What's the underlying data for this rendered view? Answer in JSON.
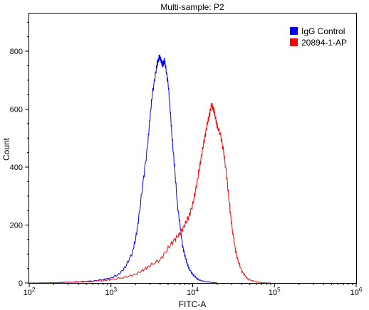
{
  "chart_data": {
    "type": "line",
    "title": "Multi-sample: P2",
    "xlabel": "FITC-A",
    "ylabel": "Count",
    "x_scale": "log",
    "xlim": [
      100,
      1000000
    ],
    "ylim": [
      0,
      930
    ],
    "x_ticks": [
      {
        "value": 100,
        "base": "10",
        "exp": "2"
      },
      {
        "value": 1000,
        "base": "10",
        "exp": "3"
      },
      {
        "value": 10000,
        "base": "10",
        "exp": "4"
      },
      {
        "value": 100000,
        "base": "10",
        "exp": "5"
      },
      {
        "value": 1000000,
        "base": "10",
        "exp": "6"
      }
    ],
    "y_ticks": [
      0,
      200,
      400,
      600,
      800
    ],
    "legend": {
      "placement": "top-right"
    },
    "series": [
      {
        "name": "IgG Control",
        "color": "#0000ff",
        "x": [
          100,
          160,
          250,
          400,
          600,
          800,
          1000,
          1250,
          1500,
          1800,
          2000,
          2200,
          2500,
          2800,
          3000,
          3200,
          3500,
          3700,
          3900,
          4100,
          4300,
          4500,
          4700,
          5000,
          5300,
          5600,
          6000,
          6500,
          7000,
          7500,
          8000,
          8500,
          9000,
          10000,
          11000,
          12000,
          14000,
          17000,
          20000
        ],
        "y": [
          0,
          0,
          2,
          4,
          7,
          12,
          17,
          30,
          55,
          100,
          150,
          230,
          360,
          470,
          570,
          650,
          720,
          760,
          780,
          770,
          750,
          770,
          740,
          690,
          600,
          500,
          400,
          270,
          200,
          130,
          95,
          70,
          50,
          30,
          18,
          10,
          5,
          2,
          0
        ]
      },
      {
        "name": "20894-1-AP",
        "color": "#ff0000",
        "x": [
          100,
          200,
          400,
          800,
          1000,
          1500,
          2000,
          2500,
          3000,
          4000,
          5000,
          6000,
          7000,
          8000,
          9000,
          10000,
          11000,
          12000,
          13000,
          14000,
          15000,
          16000,
          17000,
          18000,
          19000,
          20000,
          22000,
          24000,
          26000,
          28000,
          30000,
          33000,
          36000,
          40000,
          45000,
          50000,
          60000,
          70000,
          90000
        ],
        "y": [
          0,
          1,
          3,
          8,
          12,
          20,
          30,
          45,
          60,
          80,
          120,
          150,
          170,
          200,
          230,
          270,
          330,
          390,
          450,
          500,
          545,
          580,
          615,
          600,
          570,
          540,
          510,
          450,
          370,
          280,
          200,
          120,
          75,
          40,
          20,
          10,
          4,
          1,
          0
        ]
      }
    ]
  }
}
